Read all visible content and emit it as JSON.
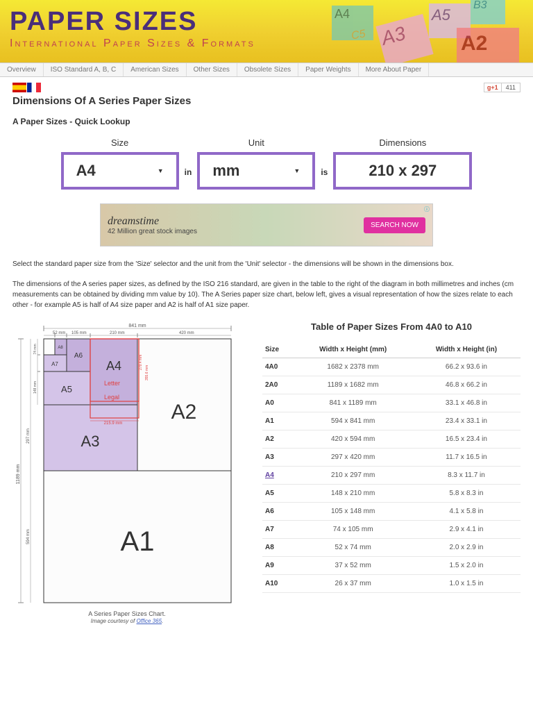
{
  "header": {
    "title": "PAPER SIZES",
    "subtitle": "International Paper Sizes & Formats",
    "decor": [
      "A4",
      "C5",
      "A3",
      "A5",
      "B3",
      "A2"
    ]
  },
  "nav": [
    "Overview",
    "ISO Standard A, B, C",
    "American Sizes",
    "Other Sizes",
    "Obsolete Sizes",
    "Paper Weights",
    "More About Paper"
  ],
  "gplus": {
    "label": "g+1",
    "count": "411"
  },
  "page_title": "Dimensions Of A Series Paper Sizes",
  "lookup": {
    "heading": "A Paper Sizes - Quick Lookup",
    "size_label": "Size",
    "size_value": "A4",
    "sep1": "in",
    "unit_label": "Unit",
    "unit_value": "mm",
    "sep2": "is",
    "dim_label": "Dimensions",
    "dim_value": "210 x 297"
  },
  "ad": {
    "brand": "dreamstime",
    "sub": "42 Million great stock images",
    "button": "SEARCH NOW",
    "info": "ⓘ"
  },
  "para1": "Select the standard paper size from the 'Size' selector and the unit from the 'Unit' selector - the dimensions will be shown in the dimensions box.",
  "para2": "The dimensions of the A series paper sizes, as defined by the ISO 216 standard, are given in the table to the right of the diagram in both millimetres and inches (cm measurements can be obtained by dividing mm value by 10). The A Series paper size chart, below left, gives a visual representation of how the sizes relate to each other - for example A5 is half of A4 size paper and A2 is half of A1 size paper.",
  "table": {
    "title": "Table of Paper Sizes From 4A0 to A10",
    "columns": [
      "Size",
      "Width x Height (mm)",
      "Width x Height (in)"
    ],
    "rows": [
      [
        "4A0",
        "1682 x 2378 mm",
        "66.2 x 93.6 in"
      ],
      [
        "2A0",
        "1189 x 1682 mm",
        "46.8 x 66.2 in"
      ],
      [
        "A0",
        "841 x 1189 mm",
        "33.1 x 46.8 in"
      ],
      [
        "A1",
        "594 x 841 mm",
        "23.4 x 33.1 in"
      ],
      [
        "A2",
        "420 x 594 mm",
        "16.5 x 23.4 in"
      ],
      [
        "A3",
        "297 x 420 mm",
        "11.7 x 16.5 in"
      ],
      [
        "A4",
        "210 x 297 mm",
        "8.3 x 11.7 in"
      ],
      [
        "A5",
        "148 x 210 mm",
        "5.8 x 8.3 in"
      ],
      [
        "A6",
        "105 x 148 mm",
        "4.1 x 5.8 in"
      ],
      [
        "A7",
        "74 x 105 mm",
        "2.9 x 4.1 in"
      ],
      [
        "A8",
        "52 x 74 mm",
        "2.0 x 2.9 in"
      ],
      [
        "A9",
        "37 x 52 mm",
        "1.5 x 2.0 in"
      ],
      [
        "A10",
        "26 x 37 mm",
        "1.0 x 1.5 in"
      ]
    ],
    "highlight_row": 6
  },
  "chart": {
    "caption": "A Series Paper Sizes Chart.",
    "credit_prefix": "Image courtesy of ",
    "credit_link": "Office 365",
    "dim_841": "841 mm",
    "dim_52": "52 mm",
    "dim_105": "105 mm",
    "dim_210": "210 mm",
    "dim_420": "420 mm",
    "dim_74": "74 mm",
    "dim_148": "148 mm",
    "dim_297": "297 mm",
    "dim_594": "594 mm",
    "dim_1189": "1189 mm",
    "dim_2794": "279.4 mm",
    "dim_3556": "355.6 mm",
    "dim_2159": "215.9 mm",
    "letter": "Letter",
    "legal": "Legal",
    "colors": {
      "a_fill": "#d4c4e8",
      "a_stroke": "#333333",
      "letter_stroke": "#e04040",
      "dim_line": "#888888",
      "text": "#333333"
    }
  }
}
